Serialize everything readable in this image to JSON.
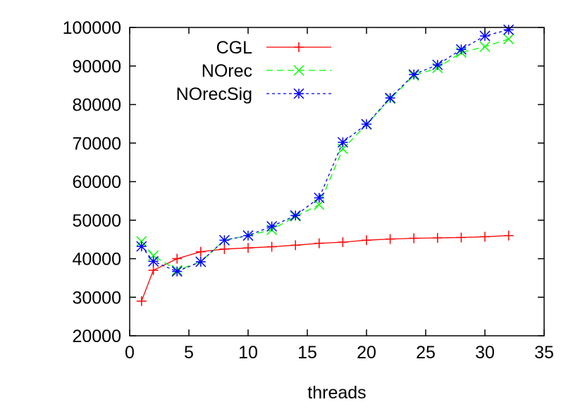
{
  "chart_data": {
    "type": "line",
    "title": "",
    "xlabel": "threads",
    "ylabel": "",
    "xlim": [
      0,
      35
    ],
    "ylim": [
      20000,
      100000
    ],
    "xticks": [
      0,
      5,
      10,
      15,
      20,
      25,
      30,
      35
    ],
    "yticks": [
      20000,
      30000,
      40000,
      50000,
      60000,
      70000,
      80000,
      90000,
      100000
    ],
    "xtick_labels": [
      "0",
      "5",
      "10",
      "15",
      "20",
      "25",
      "30",
      "35"
    ],
    "ytick_labels": [
      "20000",
      "30000",
      "40000",
      "50000",
      "60000",
      "70000",
      "80000",
      "90000",
      "100000"
    ],
    "grid": false,
    "legend_position": "top-left",
    "series": [
      {
        "name": "CGL",
        "color": "#ff0000",
        "marker": "plus",
        "dash": "solid",
        "x": [
          1,
          2,
          4,
          6,
          8,
          10,
          12,
          14,
          16,
          18,
          20,
          22,
          24,
          26,
          28,
          30,
          32
        ],
        "y": [
          29000,
          37000,
          40000,
          41800,
          42500,
          42800,
          43100,
          43500,
          44000,
          44300,
          44800,
          45100,
          45300,
          45400,
          45500,
          45700,
          46000
        ]
      },
      {
        "name": "NOrec",
        "color": "#00ff00",
        "marker": "x",
        "dash": "dashed",
        "x": [
          1,
          2,
          4,
          6,
          8,
          10,
          12,
          14,
          16,
          18,
          20,
          22,
          24,
          26,
          28,
          30,
          32
        ],
        "y": [
          44500,
          40800,
          37000,
          39200,
          44800,
          46000,
          47500,
          51000,
          54000,
          68500,
          74800,
          81500,
          87500,
          89500,
          93500,
          95000,
          97000
        ]
      },
      {
        "name": "NOrecSig",
        "color": "#0000ff",
        "marker": "star",
        "dash": "dotted",
        "x": [
          1,
          2,
          4,
          6,
          8,
          10,
          12,
          14,
          16,
          18,
          20,
          22,
          24,
          26,
          28,
          30,
          32
        ],
        "y": [
          43200,
          39300,
          36700,
          39200,
          44800,
          46000,
          48400,
          51200,
          55800,
          70200,
          74900,
          81700,
          87800,
          90300,
          94300,
          97800,
          99400
        ]
      }
    ]
  }
}
